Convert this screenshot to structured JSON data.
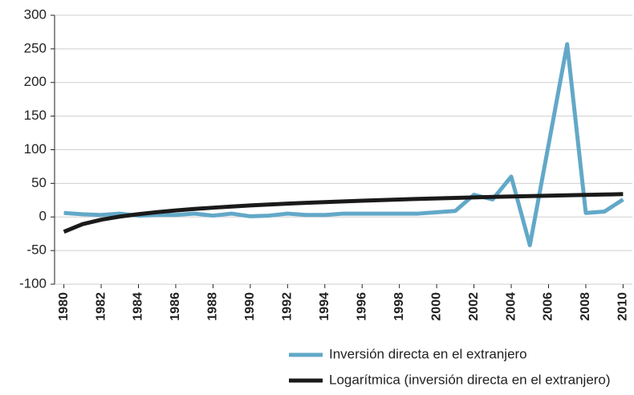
{
  "chart_data": {
    "type": "line",
    "x": [
      1980,
      1981,
      1982,
      1983,
      1984,
      1985,
      1986,
      1987,
      1988,
      1989,
      1990,
      1991,
      1992,
      1993,
      1994,
      1995,
      1996,
      1997,
      1998,
      1999,
      2000,
      2001,
      2002,
      2003,
      2004,
      2005,
      2006,
      2007,
      2008,
      2009,
      2010
    ],
    "series": [
      {
        "name": "Inversión directa en el extranjero",
        "color": "#62a8c8",
        "values": [
          6,
          4,
          3,
          5,
          2,
          3,
          3,
          5,
          2,
          5,
          1,
          2,
          5,
          3,
          3,
          5,
          5,
          5,
          5,
          5,
          7,
          9,
          33,
          26,
          60,
          -42,
          107,
          257,
          6,
          8,
          26
        ]
      },
      {
        "name": "Logarítmica (inversión directa en el extranjero)",
        "color": "#1a1a1a",
        "values": [
          -22,
          -10.7,
          -4.1,
          0.6,
          4.2,
          7.2,
          9.7,
          11.9,
          13.8,
          15.5,
          17.1,
          18.5,
          19.8,
          21,
          22.1,
          23.2,
          24.2,
          25.1,
          26,
          26.8,
          27.6,
          28.4,
          29.1,
          29.8,
          30.5,
          31.1,
          31.7,
          32.3,
          32.9,
          33.4,
          34
        ]
      }
    ],
    "xlim": [
      1979.5,
      2010.5
    ],
    "xticks": [
      1980,
      1982,
      1984,
      1986,
      1988,
      1990,
      1992,
      1994,
      1996,
      1998,
      2000,
      2002,
      2004,
      2006,
      2008,
      2010
    ],
    "ylim": [
      -100,
      300
    ],
    "yticks": [
      -100,
      -50,
      0,
      50,
      100,
      150,
      200,
      250,
      300
    ],
    "grid": true
  }
}
